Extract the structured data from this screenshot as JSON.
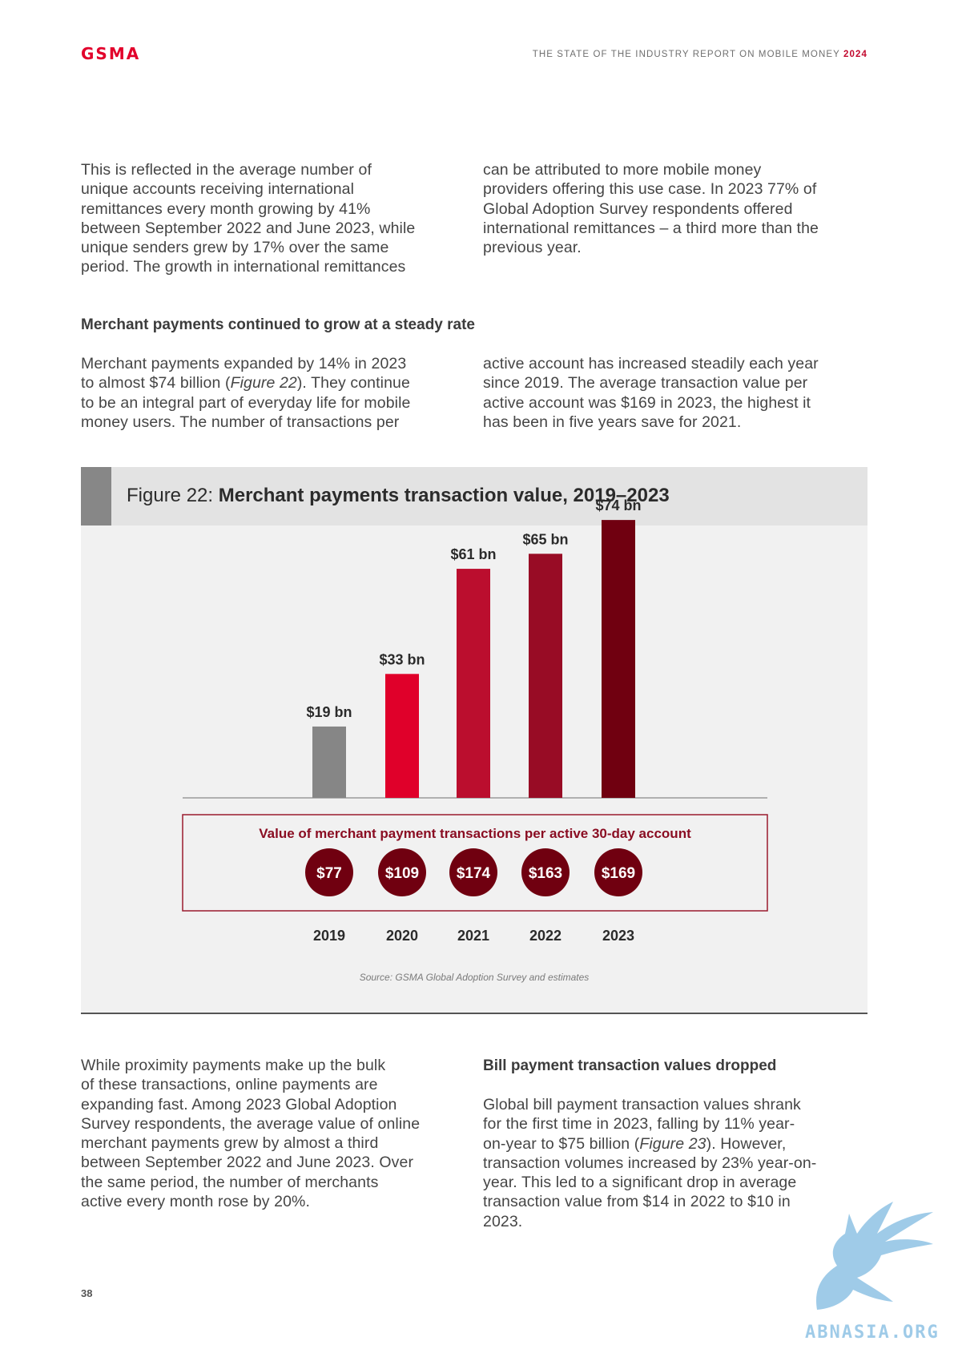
{
  "header": {
    "logo": "GSMA",
    "report_title": "THE STATE OF THE INDUSTRY REPORT ON MOBILE MONEY",
    "report_year": "2024"
  },
  "intro": {
    "left": [
      "This is reflected in the average number of",
      "unique accounts receiving international",
      "remittances every month growing by 41%",
      "between September 2022 and June 2023, while",
      "unique senders grew by 17% over the same",
      "period. The growth in international remittances"
    ],
    "right": [
      "can be attributed to more mobile money",
      "providers offering this use case. In 2023 77% of",
      "Global Adoption Survey respondents offered",
      "international remittances – a third more than the",
      "previous year."
    ]
  },
  "merchant": {
    "heading": "Merchant payments continued to grow at a steady rate",
    "left": [
      "Merchant payments expanded by 14% in 2023",
      "to almost $74 billion (",
      "Figure 22",
      "). They continue",
      "to be an integral part of everyday life for mobile",
      "money users. The number of transactions per"
    ],
    "right": [
      "active account has increased steadily each year",
      "since 2019. The average transaction value per",
      "active account was $169 in 2023, the highest it",
      "has been in five years save for 2021."
    ]
  },
  "figure": {
    "label": "Figure 22:",
    "title": "Merchant payments transaction value, 2019–2023",
    "per_account_title": "Value of merchant payment transactions per active 30-day account",
    "source": "Source: GSMA Global Adoption Survey and estimates"
  },
  "chart_data": {
    "type": "bar",
    "categories": [
      "2019",
      "2020",
      "2021",
      "2022",
      "2023"
    ],
    "values": [
      19,
      33,
      61,
      65,
      74
    ],
    "value_labels": [
      "$19 bn",
      "$33 bn",
      "$61 bn",
      "$65 bn",
      "$74 bn"
    ],
    "bar_colors": [
      "#868686",
      "#e0002a",
      "#bb0e2e",
      "#980c25",
      "#700010"
    ],
    "per_account_values": [
      77,
      109,
      174,
      163,
      169
    ],
    "per_account_labels": [
      "$77",
      "$109",
      "$174",
      "$163",
      "$169"
    ],
    "circle_color": "#700010",
    "title": "Merchant payments transaction value, 2019–2023",
    "ylim": [
      0,
      80
    ]
  },
  "bottom": {
    "left": [
      "While proximity payments make up the bulk",
      "of these transactions, online payments are",
      "expanding fast. Among 2023 Global Adoption",
      "Survey respondents, the average value of online",
      "merchant payments grew by almost a third",
      "between September 2022 and June 2023. Over",
      "the same period, the number of merchants",
      "active every month rose by 20%."
    ],
    "right_heading": "Bill payment transaction values dropped",
    "right": [
      "Global bill payment transaction values shrank",
      "for the first time in 2023, falling by 11% year-",
      "on-year to $75 billion (",
      "Figure 23",
      "). However,",
      "transaction volumes increased by 23% year-on-",
      "year. This led to a significant drop in average",
      "transaction value from $14 in 2022 to $10 in",
      "2023."
    ]
  },
  "footer": {
    "page_number": "38",
    "watermark": "ABNASIA.ORG",
    "watermark_icon": "griffin-logo-icon"
  }
}
